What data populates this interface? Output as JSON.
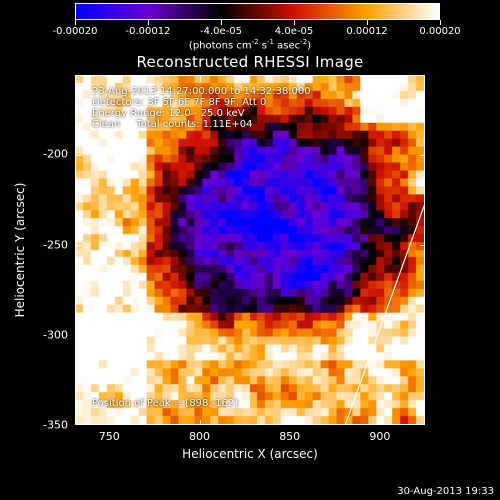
{
  "colorbar": {
    "tick_labels": [
      "-0.00020",
      "-0.00012",
      "-4.0e-05",
      "4.0e-05",
      "0.00012",
      "0.00020"
    ],
    "tick_values": [
      -0.0002,
      -0.00012,
      -4e-05,
      4e-05,
      0.00012,
      0.0002
    ],
    "units": "(photons cm",
    "units_exp1": "-2",
    "units_mid": " s",
    "units_exp2": "-1",
    "units_mid2": " asec",
    "units_exp3": "-2",
    "units_end": ")",
    "range": [
      -0.0002,
      0.0002
    ],
    "colormap": [
      "#0000ff",
      "#6a00d0",
      "#000000",
      "#d01000",
      "#ffa000",
      "#ffffff"
    ]
  },
  "info": {
    "time_range": "23-Aug-2013 14:27:00.000 to 14:32:38.000",
    "detectors": "Detectors: 3F 5F 6F 7F 8F 9F, Att 0",
    "energy": "Energy Range: 12.0 - 25.0 keV",
    "clean": "Clean     Total counts: 1.11E+04",
    "peak": "Position of Peak = [898,-162]"
  },
  "footer": {
    "date": "30-Aug-2013 19:33"
  },
  "chart_data": {
    "type": "heatmap",
    "title": "Reconstructed RHESSI Image",
    "xlabel": "Heliocentric X (arcsec)",
    "ylabel": "Heliocentric Y (arcsec)",
    "xlim": [
      731,
      925
    ],
    "ylim": [
      -350,
      -156
    ],
    "xticks": [
      750,
      800,
      850,
      900
    ],
    "xtick_labels": [
      "750",
      "800",
      "850",
      "900"
    ],
    "yticks": [
      -200,
      -250,
      -300,
      -350
    ],
    "ytick_labels": [
      "-200",
      "-250",
      "-300",
      "-350"
    ],
    "grid": false,
    "limb_line": {
      "x": [
        880,
        925
      ],
      "y": [
        -350,
        -225
      ],
      "color": "#ffffff"
    }
  }
}
